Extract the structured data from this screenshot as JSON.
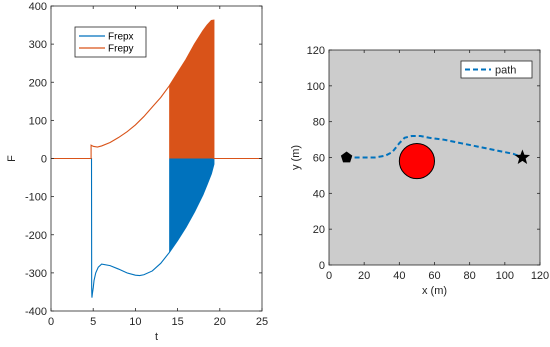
{
  "chart_data": [
    {
      "type": "line",
      "xlabel": "t",
      "ylabel": "F",
      "xlim": [
        0,
        25
      ],
      "ylim": [
        -400,
        400
      ],
      "xticks": [
        0,
        5,
        10,
        15,
        20,
        25
      ],
      "yticks": [
        -400,
        -300,
        -200,
        -100,
        0,
        100,
        200,
        300,
        400
      ],
      "legend_position": "top-left",
      "series": [
        {
          "name": "Frepx",
          "color": "#0072bd",
          "x": [
            0,
            4.75,
            4.8,
            4.82,
            4.85,
            4.9,
            5.0,
            5.1,
            5.3,
            5.6,
            6.0,
            7.0,
            8.0,
            9.0,
            10.0,
            10.5,
            11.0,
            12.0,
            13.0,
            14.0,
            15.0,
            16.0,
            17.0,
            18.0,
            18.5,
            19.0,
            19.3,
            19.3,
            25
          ],
          "y": [
            0,
            0,
            0,
            -340,
            -365,
            -355,
            -340,
            -320,
            -300,
            -285,
            -277,
            -281,
            -290,
            -300,
            -306,
            -307,
            -305,
            -295,
            -275,
            -247,
            -215,
            -180,
            -140,
            -95,
            -68,
            -40,
            -15,
            0,
            0
          ]
        },
        {
          "name": "Frepy",
          "color": "#d95319",
          "x": [
            0,
            4.75,
            4.75,
            5.0,
            5.5,
            6.0,
            7.0,
            8.0,
            9.0,
            10.0,
            11.0,
            12.0,
            13.0,
            14.0,
            15.0,
            16.0,
            17.0,
            18.0,
            18.5,
            19.0,
            19.3,
            19.3,
            25
          ],
          "y": [
            0,
            0,
            35,
            32,
            30,
            33,
            42,
            55,
            70,
            88,
            110,
            135,
            160,
            190,
            225,
            260,
            300,
            335,
            350,
            362,
            363,
            0,
            0
          ]
        }
      ],
      "shaded_regions": [
        {
          "series": "Frepx",
          "x_from": 14,
          "x_to": 19.3,
          "color": "#0072bd"
        },
        {
          "series": "Frepy",
          "x_from": 14,
          "x_to": 19.3,
          "color": "#d95319"
        }
      ]
    },
    {
      "type": "line",
      "xlabel": "x (m)",
      "ylabel": "y (m)",
      "xlim": [
        0,
        120
      ],
      "ylim": [
        0,
        120
      ],
      "xticks": [
        0,
        20,
        40,
        60,
        80,
        100,
        120
      ],
      "yticks": [
        0,
        20,
        40,
        60,
        80,
        100,
        120
      ],
      "background": "#cccccc",
      "legend_position": "top-right",
      "series": [
        {
          "name": "path",
          "color": "#0072bd",
          "style": "dashed",
          "x": [
            10,
            18,
            26,
            32,
            36,
            40,
            43,
            47,
            52,
            57,
            65,
            75,
            85,
            95,
            105,
            110
          ],
          "y": [
            60,
            60,
            60,
            61,
            63,
            68,
            71,
            72,
            72,
            71,
            70,
            68,
            66,
            64,
            62,
            60
          ]
        }
      ],
      "markers": [
        {
          "shape": "pentagon",
          "x": 10,
          "y": 60,
          "color": "#000000"
        },
        {
          "shape": "star",
          "x": 110,
          "y": 60,
          "color": "#000000"
        }
      ],
      "obstacles": [
        {
          "shape": "circle",
          "cx": 50,
          "cy": 58,
          "r": 10,
          "color": "#ff0000"
        }
      ]
    }
  ]
}
